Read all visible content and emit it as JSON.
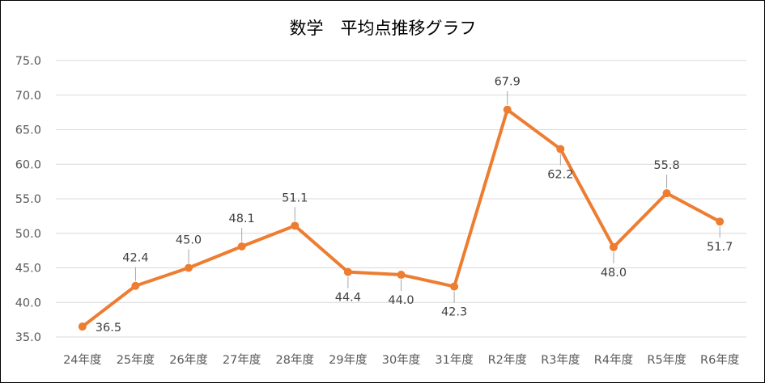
{
  "chart_data": {
    "type": "line",
    "title": "数学　平均点推移グラフ",
    "xlabel": "",
    "ylabel": "",
    "categories": [
      "24年度",
      "25年度",
      "26年度",
      "27年度",
      "28年度",
      "29年度",
      "30年度",
      "31年度",
      "R2年度",
      "R3年度",
      "R4年度",
      "R5年度",
      "R6年度"
    ],
    "series": [
      {
        "values": [
          36.5,
          42.4,
          45.0,
          48.1,
          51.1,
          44.4,
          44.0,
          42.3,
          67.9,
          62.2,
          48.0,
          55.8,
          51.7
        ]
      }
    ],
    "data_labels": [
      "36.5",
      "42.4",
      "45.0",
      "48.1",
      "51.1",
      "44.4",
      "44.0",
      "42.3",
      "67.9",
      "62.2",
      "48.0",
      "55.8",
      "51.7"
    ],
    "label_positions": [
      "right",
      "above",
      "above",
      "above",
      "above",
      "below",
      "below",
      "below",
      "above",
      "below",
      "below",
      "above",
      "below"
    ],
    "ylim": [
      35,
      75
    ],
    "ystep": 5,
    "ytick_labels": [
      "35.0",
      "40.0",
      "45.0",
      "50.0",
      "55.0",
      "60.0",
      "65.0",
      "70.0",
      "75.0"
    ],
    "grid": true,
    "legend": "none",
    "line_color": "#ed7d31",
    "marker_color": "#ed7d31"
  }
}
